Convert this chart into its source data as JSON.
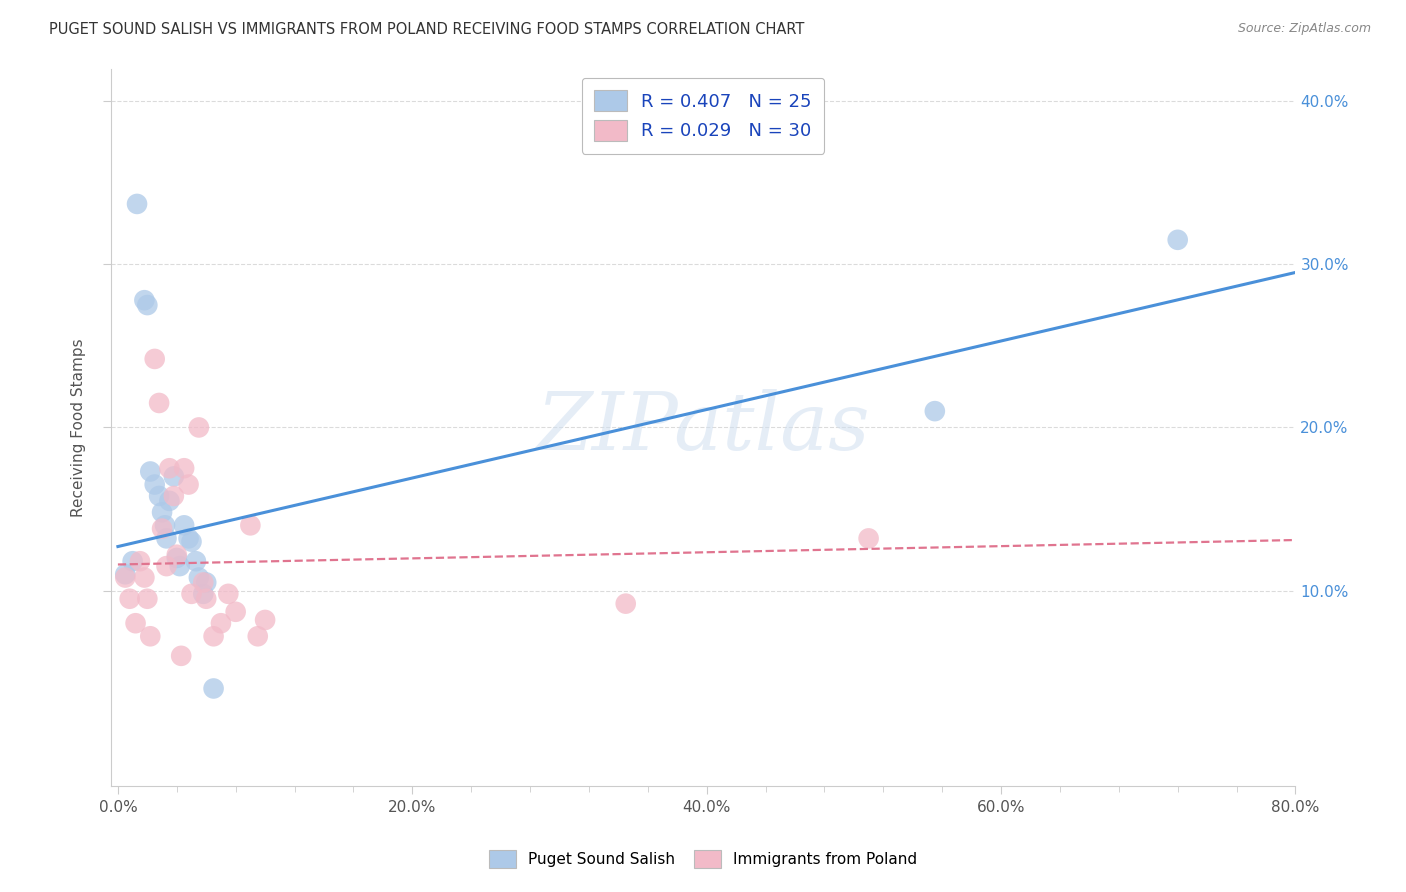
{
  "title": "PUGET SOUND SALISH VS IMMIGRANTS FROM POLAND RECEIVING FOOD STAMPS CORRELATION CHART",
  "source": "Source: ZipAtlas.com",
  "ylabel": "Receiving Food Stamps",
  "xlabel_ticks": [
    "0.0%",
    "",
    "",
    "",
    "",
    "20.0%",
    "",
    "",
    "",
    "",
    "40.0%",
    "",
    "",
    "",
    "",
    "60.0%",
    "",
    "",
    "",
    "",
    "80.0%"
  ],
  "xlabel_vals": [
    0.0,
    0.04,
    0.08,
    0.12,
    0.16,
    0.2,
    0.24,
    0.28,
    0.32,
    0.36,
    0.4,
    0.44,
    0.48,
    0.52,
    0.56,
    0.6,
    0.64,
    0.68,
    0.72,
    0.76,
    0.8
  ],
  "xlabel_display_ticks": [
    0.0,
    0.2,
    0.4,
    0.6,
    0.8
  ],
  "xlabel_display_labels": [
    "0.0%",
    "20.0%",
    "40.0%",
    "60.0%",
    "80.0%"
  ],
  "ylabel_ticks": [
    "10.0%",
    "20.0%",
    "30.0%",
    "40.0%"
  ],
  "ylabel_vals": [
    0.1,
    0.2,
    0.3,
    0.4
  ],
  "xlim": [
    -0.005,
    0.8
  ],
  "ylim": [
    -0.02,
    0.42
  ],
  "blue_R": 0.407,
  "blue_N": 25,
  "pink_R": 0.029,
  "pink_N": 30,
  "blue_color": "#adc9e8",
  "pink_color": "#f2bac8",
  "blue_line_color": "#4a90d9",
  "pink_line_color": "#e0748f",
  "legend_R_color": "#1a44bb",
  "watermark_color": "#c8d8e8",
  "blue_points_x": [
    0.005,
    0.01,
    0.013,
    0.018,
    0.02,
    0.022,
    0.025,
    0.028,
    0.03,
    0.032,
    0.033,
    0.035,
    0.038,
    0.04,
    0.042,
    0.045,
    0.048,
    0.05,
    0.053,
    0.055,
    0.058,
    0.06,
    0.065,
    0.555,
    0.72
  ],
  "blue_points_y": [
    0.11,
    0.118,
    0.337,
    0.278,
    0.275,
    0.173,
    0.165,
    0.158,
    0.148,
    0.14,
    0.132,
    0.155,
    0.17,
    0.12,
    0.115,
    0.14,
    0.132,
    0.13,
    0.118,
    0.108,
    0.098,
    0.105,
    0.04,
    0.21,
    0.315
  ],
  "pink_points_x": [
    0.005,
    0.008,
    0.012,
    0.015,
    0.018,
    0.02,
    0.022,
    0.025,
    0.028,
    0.03,
    0.033,
    0.035,
    0.038,
    0.04,
    0.043,
    0.045,
    0.048,
    0.05,
    0.055,
    0.058,
    0.06,
    0.065,
    0.07,
    0.075,
    0.08,
    0.09,
    0.095,
    0.1,
    0.345,
    0.51
  ],
  "pink_points_y": [
    0.108,
    0.095,
    0.08,
    0.118,
    0.108,
    0.095,
    0.072,
    0.242,
    0.215,
    0.138,
    0.115,
    0.175,
    0.158,
    0.122,
    0.06,
    0.175,
    0.165,
    0.098,
    0.2,
    0.105,
    0.095,
    0.072,
    0.08,
    0.098,
    0.087,
    0.14,
    0.072,
    0.082,
    0.092,
    0.132
  ],
  "blue_line_x": [
    0.0,
    0.8
  ],
  "blue_line_y_start": 0.127,
  "blue_line_y_end": 0.295,
  "pink_line_x": [
    0.0,
    0.8
  ],
  "pink_line_y_start": 0.116,
  "pink_line_y_end": 0.131,
  "background_color": "#ffffff",
  "grid_color": "#cccccc"
}
